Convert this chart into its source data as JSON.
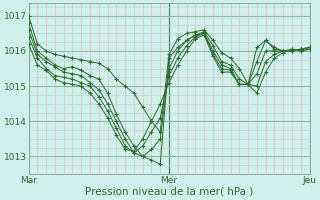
{
  "background_color": "#cff0eb",
  "line_color": "#2d6a2d",
  "grid_color_minor_x": "#e8b8b8",
  "grid_color_minor_y": "#b8ddd8",
  "grid_color_major_x": "#557755",
  "grid_color_major_y": "#88bbaa",
  "ylabel_ticks": [
    1013,
    1014,
    1015,
    1016,
    1017
  ],
  "xlim": [
    0,
    96
  ],
  "ylim": [
    1012.5,
    1017.35
  ],
  "xlabel": "Pression niveau de la mer( hPa )",
  "day_ticks": [
    0,
    48,
    96
  ],
  "day_labels": [
    "Mar",
    "Mer",
    "Jeu"
  ],
  "series": [
    [
      0,
      1017.0,
      3,
      1016.2,
      6,
      1016.0,
      9,
      1015.9,
      12,
      1015.85,
      15,
      1015.8,
      18,
      1015.75,
      21,
      1015.7,
      24,
      1015.65,
      27,
      1015.5,
      30,
      1015.2,
      33,
      1015.0,
      36,
      1014.8,
      39,
      1014.4,
      42,
      1014.0,
      45,
      1013.7,
      48,
      1015.9,
      51,
      1016.35,
      54,
      1016.5,
      57,
      1016.55,
      60,
      1016.6,
      63,
      1016.3,
      66,
      1015.95,
      69,
      1015.8,
      72,
      1015.5,
      75,
      1015.05,
      78,
      1016.1,
      81,
      1016.3,
      84,
      1016.1,
      87,
      1016.0,
      90,
      1016.0,
      93,
      1016.05,
      96,
      1016.1
    ],
    [
      0,
      1016.8,
      3,
      1016.0,
      6,
      1015.8,
      9,
      1015.6,
      12,
      1015.5,
      15,
      1015.55,
      18,
      1015.45,
      21,
      1015.3,
      24,
      1015.2,
      27,
      1014.8,
      30,
      1014.2,
      33,
      1013.7,
      36,
      1013.3,
      39,
      1013.0,
      42,
      1012.9,
      45,
      1012.78,
      48,
      1015.8,
      51,
      1016.1,
      54,
      1016.3,
      57,
      1016.45,
      60,
      1016.55,
      63,
      1016.15,
      66,
      1015.7,
      69,
      1015.6,
      72,
      1015.2,
      75,
      1015.05,
      78,
      1015.7,
      81,
      1016.3,
      84,
      1016.05,
      87,
      1016.0,
      90,
      1016.0,
      93,
      1016.05,
      96,
      1016.1
    ],
    [
      0,
      1016.6,
      3,
      1015.9,
      6,
      1015.7,
      9,
      1015.55,
      12,
      1015.4,
      15,
      1015.35,
      18,
      1015.3,
      21,
      1015.1,
      24,
      1014.9,
      27,
      1014.5,
      30,
      1014.0,
      33,
      1013.5,
      36,
      1013.1,
      39,
      1013.0,
      42,
      1013.2,
      45,
      1013.5,
      48,
      1015.5,
      51,
      1016.0,
      54,
      1016.3,
      57,
      1016.45,
      60,
      1016.5,
      63,
      1016.0,
      66,
      1015.6,
      69,
      1015.5,
      72,
      1015.05,
      75,
      1015.05,
      78,
      1015.35,
      81,
      1016.0,
      84,
      1016.0,
      87,
      1016.0,
      90,
      1016.0,
      93,
      1016.05,
      96,
      1016.1
    ],
    [
      0,
      1016.4,
      3,
      1015.8,
      6,
      1015.5,
      9,
      1015.3,
      12,
      1015.25,
      15,
      1015.2,
      18,
      1015.1,
      21,
      1015.0,
      24,
      1014.7,
      27,
      1014.3,
      30,
      1013.8,
      33,
      1013.3,
      36,
      1013.1,
      39,
      1013.3,
      42,
      1013.7,
      45,
      1014.1,
      48,
      1015.3,
      51,
      1015.8,
      54,
      1016.15,
      57,
      1016.4,
      60,
      1016.5,
      63,
      1015.9,
      66,
      1015.5,
      69,
      1015.45,
      72,
      1015.05,
      75,
      1015.05,
      78,
      1015.0,
      81,
      1015.7,
      84,
      1015.9,
      87,
      1016.0,
      90,
      1016.05,
      93,
      1016.0,
      96,
      1016.05
    ],
    [
      0,
      1016.2,
      3,
      1015.6,
      6,
      1015.45,
      9,
      1015.2,
      12,
      1015.1,
      15,
      1015.05,
      18,
      1015.0,
      21,
      1014.8,
      24,
      1014.5,
      27,
      1014.1,
      30,
      1013.6,
      33,
      1013.2,
      36,
      1013.15,
      39,
      1013.5,
      42,
      1014.0,
      45,
      1014.5,
      48,
      1015.1,
      51,
      1015.6,
      54,
      1016.0,
      57,
      1016.35,
      60,
      1016.45,
      63,
      1015.85,
      66,
      1015.4,
      69,
      1015.4,
      72,
      1015.05,
      75,
      1015.05,
      78,
      1014.8,
      81,
      1015.4,
      84,
      1015.8,
      87,
      1015.95,
      90,
      1016.05,
      93,
      1016.0,
      96,
      1016.05
    ]
  ]
}
